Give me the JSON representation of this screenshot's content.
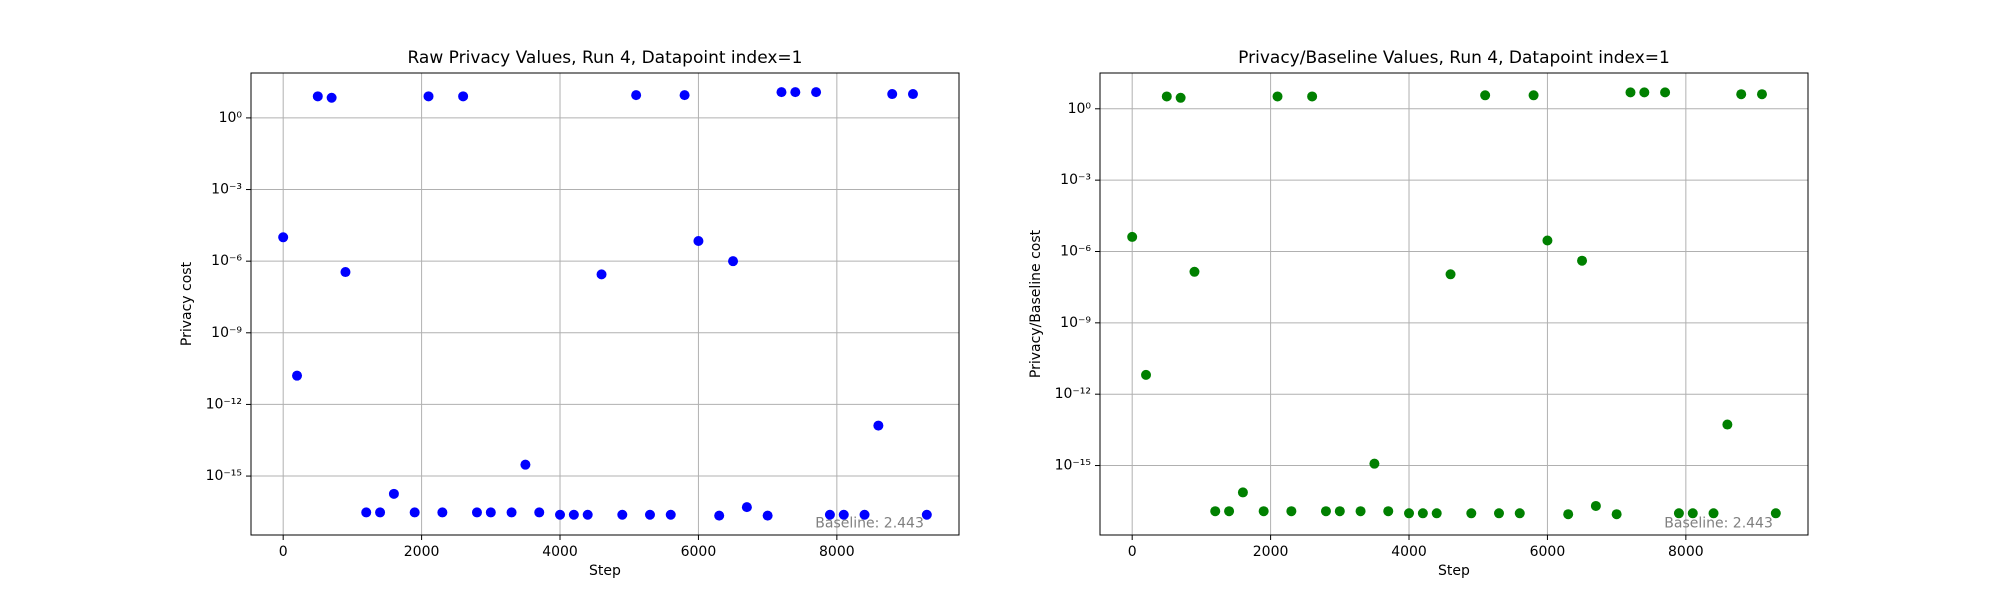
{
  "chart_data": [
    {
      "type": "scatter",
      "title": "Raw Privacy Values, Run 4, Datapoint index=1",
      "x_label": "Step",
      "y_label": "Privacy cost",
      "annotation": "Baseline: 2.443",
      "log_y": true,
      "grid": true,
      "color": "#0000ff",
      "x": [
        0,
        200,
        500,
        700,
        900,
        1200,
        1400,
        1600,
        1900,
        2100,
        2300,
        2600,
        2800,
        3000,
        3300,
        3500,
        3700,
        4000,
        4200,
        4400,
        4600,
        4900,
        5100,
        5300,
        5600,
        5800,
        6000,
        6300,
        6500,
        6700,
        7000,
        7200,
        7400,
        7700,
        7900,
        8100,
        8400,
        8600,
        8800,
        9100,
        9300
      ],
      "values": [
        1e-05,
        1.6e-11,
        8,
        7,
        3.5e-07,
        3e-17,
        3e-17,
        1.8e-16,
        3e-17,
        8,
        3e-17,
        8,
        3e-17,
        3e-17,
        3e-17,
        3e-15,
        3e-17,
        2.4e-17,
        2.4e-17,
        2.4e-17,
        2.8e-07,
        2.4e-17,
        9,
        2.4e-17,
        2.4e-17,
        9,
        7e-06,
        2.2e-17,
        1e-06,
        5e-17,
        2.2e-17,
        12,
        12,
        12,
        2.4e-17,
        2.4e-17,
        2.4e-17,
        1.3e-13,
        10,
        10,
        2.4e-17
      ],
      "xlim": [
        -465,
        9765
      ],
      "xticks": [
        0,
        2000,
        4000,
        6000,
        8000
      ],
      "ylim": [
        3.4e-18,
        76
      ],
      "yticks": [
        {
          "value": 1e-15,
          "label": "10⁻¹⁵"
        },
        {
          "value": 1e-12,
          "label": "10⁻¹²"
        },
        {
          "value": 1e-09,
          "label": "10⁻⁹"
        },
        {
          "value": 1e-06,
          "label": "10⁻⁶"
        },
        {
          "value": 0.001,
          "label": "10⁻³"
        },
        {
          "value": 1,
          "label": "10⁰"
        }
      ]
    },
    {
      "type": "scatter",
      "title": "Privacy/Baseline Values, Run 4, Datapoint index=1",
      "x_label": "Step",
      "y_label": "Privacy/Baseline cost",
      "annotation": "Baseline: 2.443",
      "log_y": true,
      "grid": true,
      "color": "#008000",
      "x": [
        0,
        200,
        500,
        700,
        900,
        1200,
        1400,
        1600,
        1900,
        2100,
        2300,
        2600,
        2800,
        3000,
        3300,
        3500,
        3700,
        4000,
        4200,
        4400,
        4600,
        4900,
        5100,
        5300,
        5600,
        5800,
        6000,
        6300,
        6500,
        6700,
        7000,
        7200,
        7400,
        7700,
        7900,
        8100,
        8400,
        8600,
        8800,
        9100,
        9300
      ],
      "values": [
        4.1e-06,
        6.5e-12,
        3.3,
        2.9,
        1.4e-07,
        1.2e-17,
        1.2e-17,
        7.4e-17,
        1.2e-17,
        3.3,
        1.2e-17,
        3.3,
        1.2e-17,
        1.2e-17,
        1.2e-17,
        1.2e-15,
        1.2e-17,
        9.8e-18,
        9.8e-18,
        9.8e-18,
        1.1e-07,
        9.8e-18,
        3.7,
        9.8e-18,
        9.8e-18,
        3.7,
        2.9e-06,
        9e-18,
        4.1e-07,
        2e-17,
        9e-18,
        4.9,
        4.9,
        4.9,
        9.8e-18,
        9.8e-18,
        9.8e-18,
        5.3e-14,
        4.1,
        4.1,
        9.8e-18
      ],
      "xlim": [
        -465,
        9765
      ],
      "xticks": [
        0,
        2000,
        4000,
        6000,
        8000
      ],
      "ylim": [
        1.2e-18,
        32
      ],
      "yticks": [
        {
          "value": 1e-15,
          "label": "10⁻¹⁵"
        },
        {
          "value": 1e-12,
          "label": "10⁻¹²"
        },
        {
          "value": 1e-09,
          "label": "10⁻⁹"
        },
        {
          "value": 1e-06,
          "label": "10⁻⁶"
        },
        {
          "value": 0.001,
          "label": "10⁻³"
        },
        {
          "value": 1,
          "label": "10⁰"
        }
      ]
    }
  ]
}
